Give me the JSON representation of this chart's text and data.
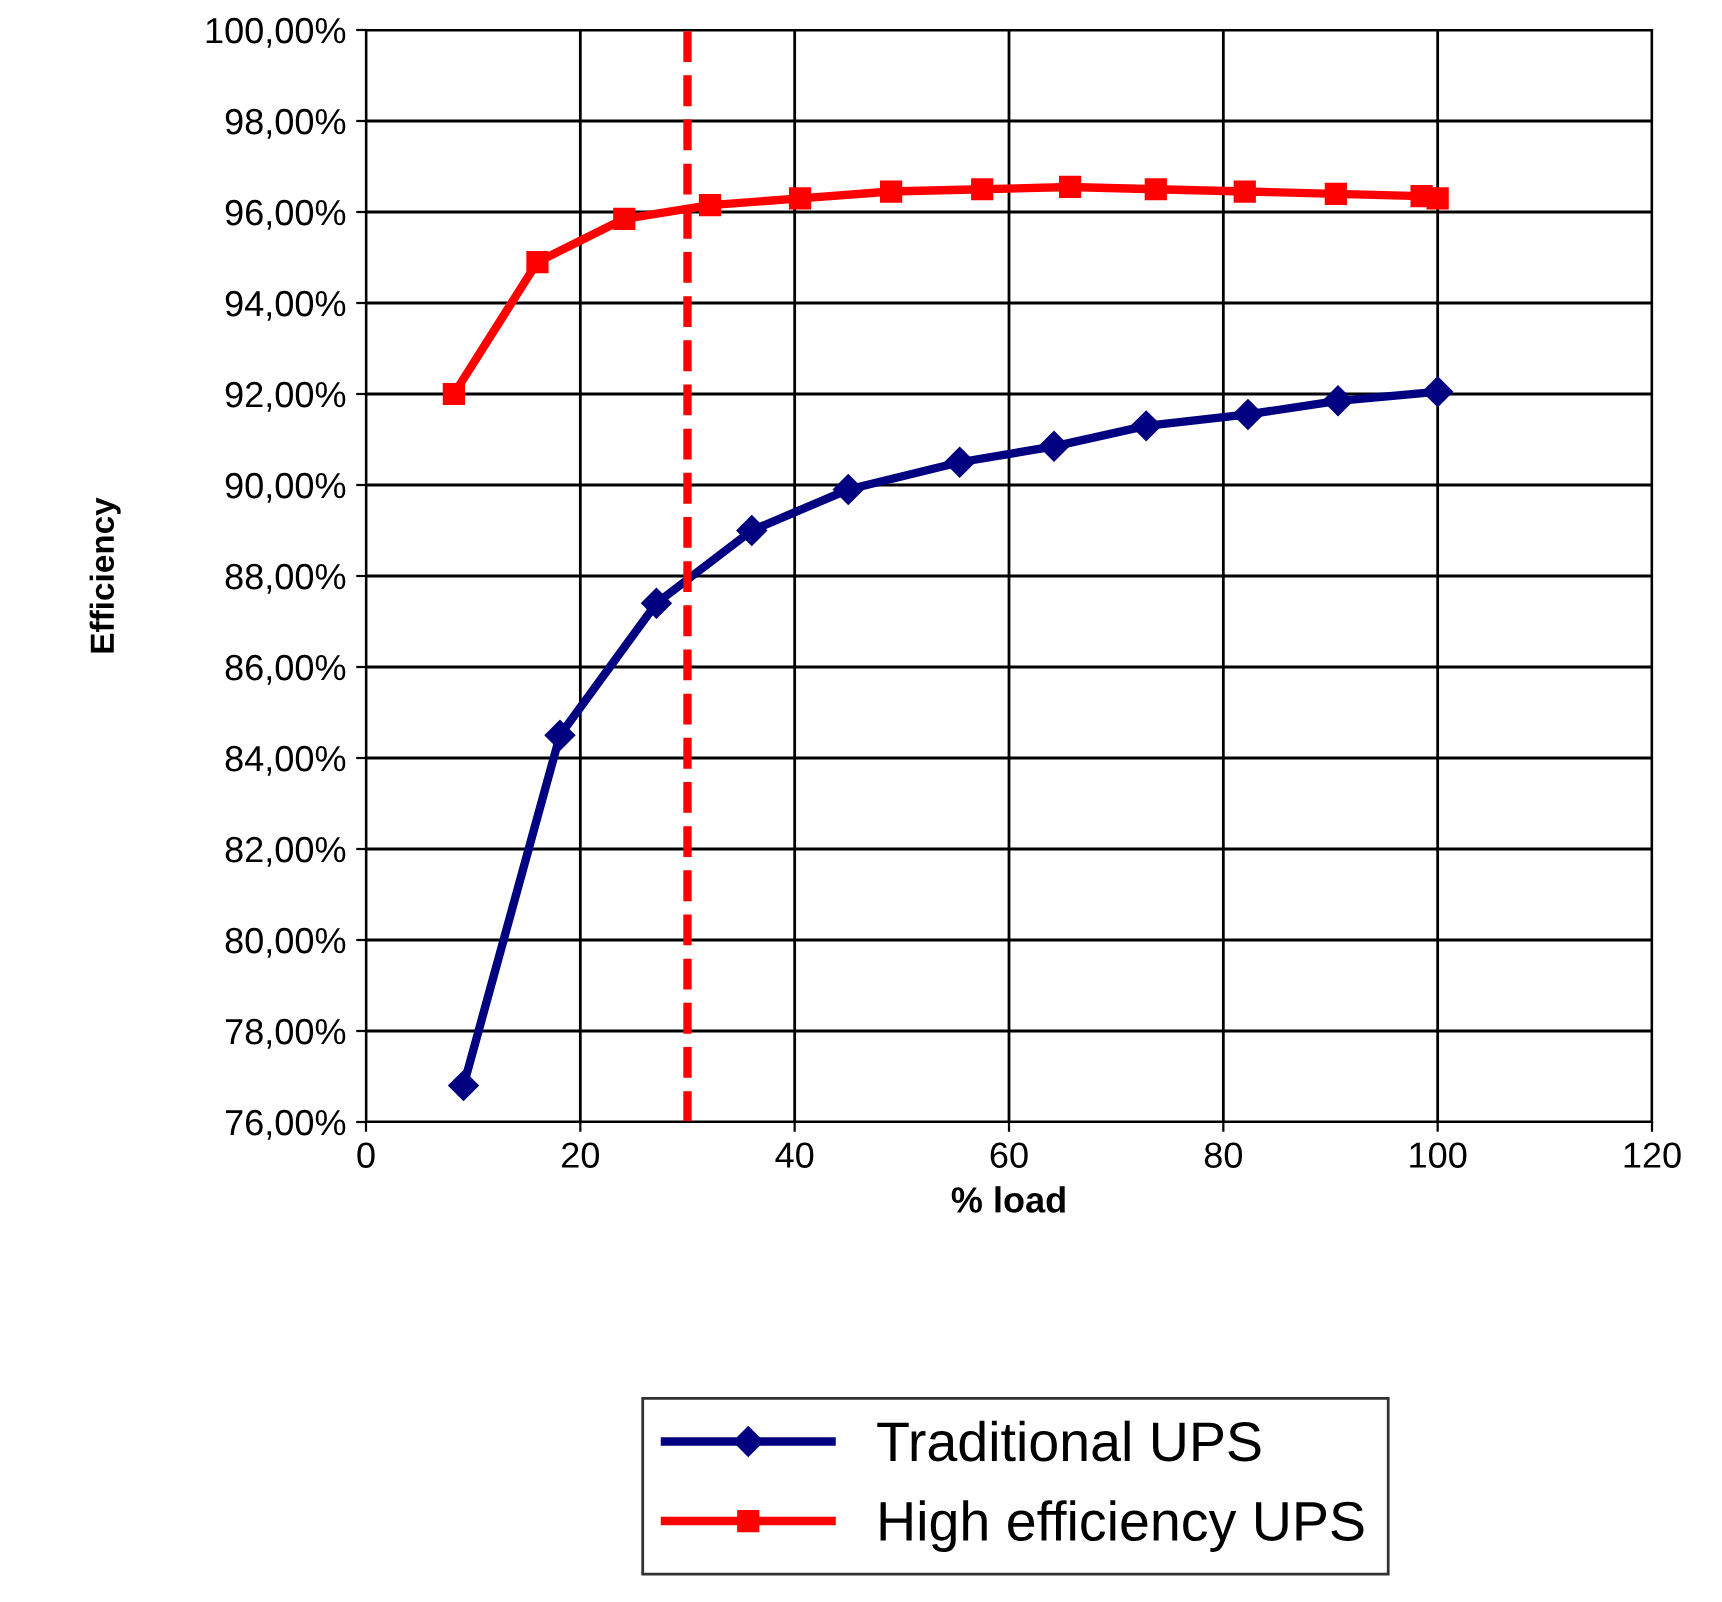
{
  "chart_data": {
    "type": "line",
    "xlabel": "% load",
    "ylabel": "Efficiency",
    "series": [
      {
        "name": "Traditional UPS",
        "color": "#000080",
        "marker": "diamond",
        "x": [
          9.1,
          18.1,
          27.1,
          36,
          45,
          55.4,
          64.2,
          72.8,
          82.3,
          90.7,
          100
        ],
        "values": [
          76.8,
          84.5,
          87.4,
          89.0,
          89.9,
          90.5,
          90.85,
          91.3,
          91.55,
          91.85,
          92.05
        ]
      },
      {
        "name": "High efficiency UPS",
        "color": "#ff0000",
        "marker": "square",
        "x": [
          8.2,
          16,
          24.1,
          32.1,
          40.5,
          49,
          57.5,
          65.7,
          73.7,
          82,
          90.5,
          98.5,
          100
        ],
        "values": [
          92.0,
          94.9,
          95.85,
          96.15,
          96.3,
          96.45,
          96.5,
          96.55,
          96.5,
          96.45,
          96.4,
          96.35,
          96.3
        ]
      }
    ],
    "ref_lines": [
      {
        "axis": "x",
        "value": 30,
        "color": "#ff0000",
        "line_style": "dashed"
      }
    ],
    "xlim": [
      0,
      120
    ],
    "xticks": [
      0,
      20,
      40,
      60,
      80,
      100,
      120
    ],
    "ylim": [
      76,
      100
    ],
    "yticks": [
      {
        "value": 76,
        "label": "76,00%"
      },
      {
        "value": 78,
        "label": "78,00%"
      },
      {
        "value": 80,
        "label": "80,00%"
      },
      {
        "value": 82,
        "label": "82,00%"
      },
      {
        "value": 84,
        "label": "84,00%"
      },
      {
        "value": 86,
        "label": "86,00%"
      },
      {
        "value": 88,
        "label": "88,00%"
      },
      {
        "value": 90,
        "label": "90,00%"
      },
      {
        "value": 92,
        "label": "92,00%"
      },
      {
        "value": 94,
        "label": "94,00%"
      },
      {
        "value": 96,
        "label": "96,00%"
      },
      {
        "value": 98,
        "label": "98,00%"
      },
      {
        "value": 100,
        "label": "100,00%"
      }
    ],
    "grid": true,
    "legend": "bottom right",
    "line_style": "solid"
  }
}
